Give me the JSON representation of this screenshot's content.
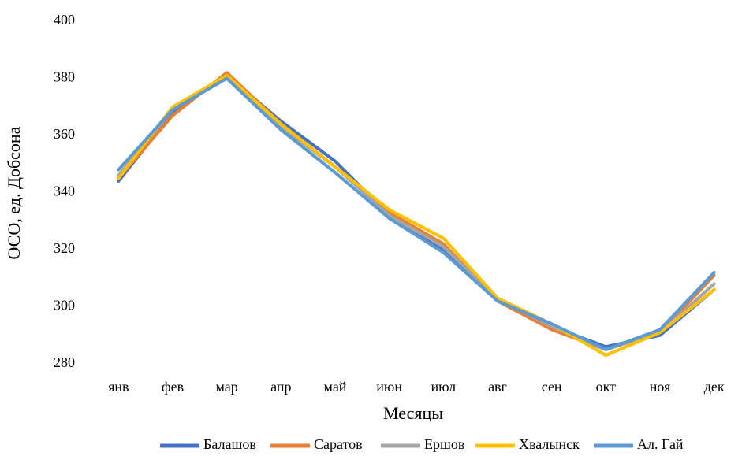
{
  "chart_data": {
    "type": "line",
    "y_label": "ОСО, ед. Добсона",
    "x_label": "Месяцы",
    "categories": [
      "янв",
      "фев",
      "мар",
      "апр",
      "май",
      "июн",
      "июл",
      "авг",
      "сен",
      "окт",
      "ноя",
      "дек"
    ],
    "series": [
      {
        "name": "Балашов",
        "color": "#4472c4",
        "values": [
          344,
          368,
          381,
          365,
          351,
          332,
          320,
          302,
          293,
          286,
          290,
          306
        ]
      },
      {
        "name": "Саратов",
        "color": "#ed7d31",
        "values": [
          345,
          367,
          382,
          364,
          349,
          333,
          322,
          302,
          292,
          285,
          291,
          311
        ]
      },
      {
        "name": "Ершов",
        "color": "#a5a5a5",
        "values": [
          346,
          369,
          381,
          363,
          349,
          332,
          321,
          303,
          293,
          285,
          291,
          308
        ]
      },
      {
        "name": "Хвалынск",
        "color": "#ffc000",
        "values": [
          345,
          370,
          381,
          364,
          349,
          334,
          324,
          303,
          294,
          283,
          291,
          306
        ]
      },
      {
        "name": "Ал. Гай",
        "color": "#5b9bd5",
        "values": [
          348,
          369,
          380,
          362,
          347,
          331,
          319,
          302,
          294,
          285,
          292,
          312
        ]
      }
    ],
    "ylim": [
      280,
      400
    ],
    "yticks": [
      280,
      300,
      320,
      340,
      360,
      380,
      400
    ],
    "grid": false,
    "legend": "bottom"
  }
}
